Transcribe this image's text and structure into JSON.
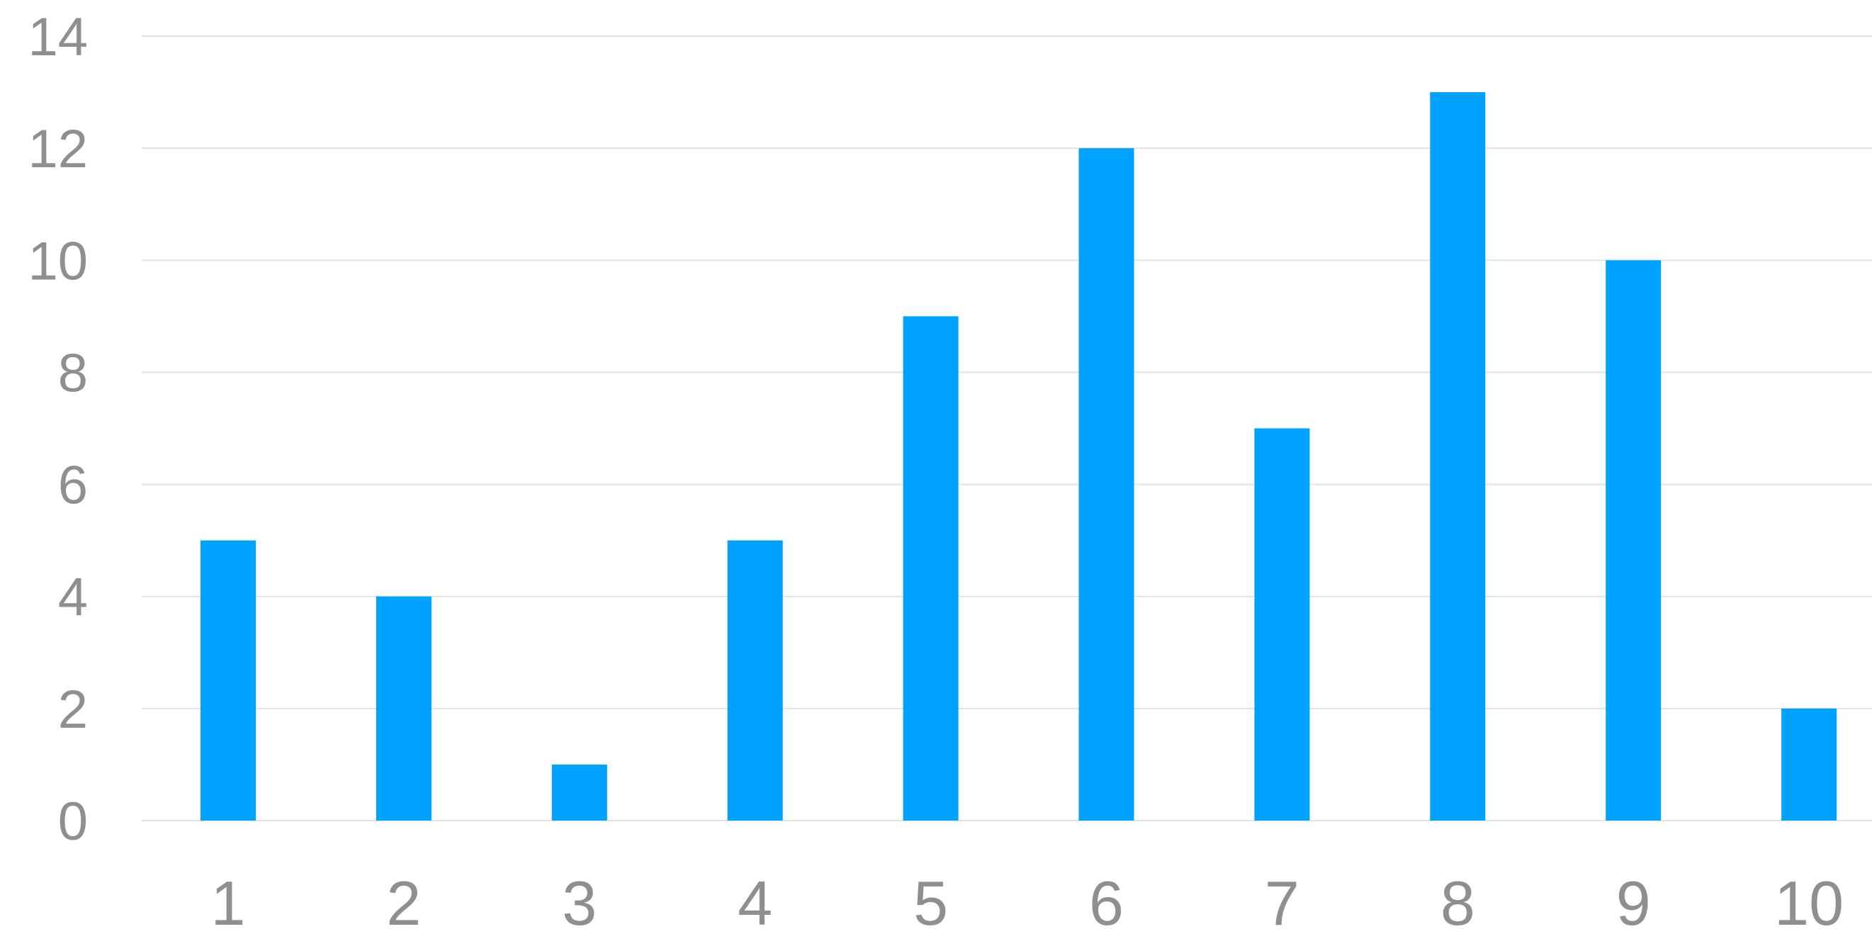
{
  "chart_data": {
    "type": "bar",
    "title": "",
    "xlabel": "",
    "ylabel": "",
    "categories": [
      "1",
      "2",
      "3",
      "4",
      "5",
      "6",
      "7",
      "8",
      "9",
      "10"
    ],
    "values": [
      5,
      4,
      1,
      5,
      9,
      12,
      7,
      13,
      10,
      2
    ],
    "ylim": [
      0,
      14
    ],
    "yticks": [
      0,
      2,
      4,
      6,
      8,
      10,
      12,
      14
    ],
    "grid": true,
    "legend": "none",
    "colors": {
      "bar": "#00a2ff",
      "grid": "#e3e3e3",
      "tick_text": "#8f8f8f"
    }
  }
}
